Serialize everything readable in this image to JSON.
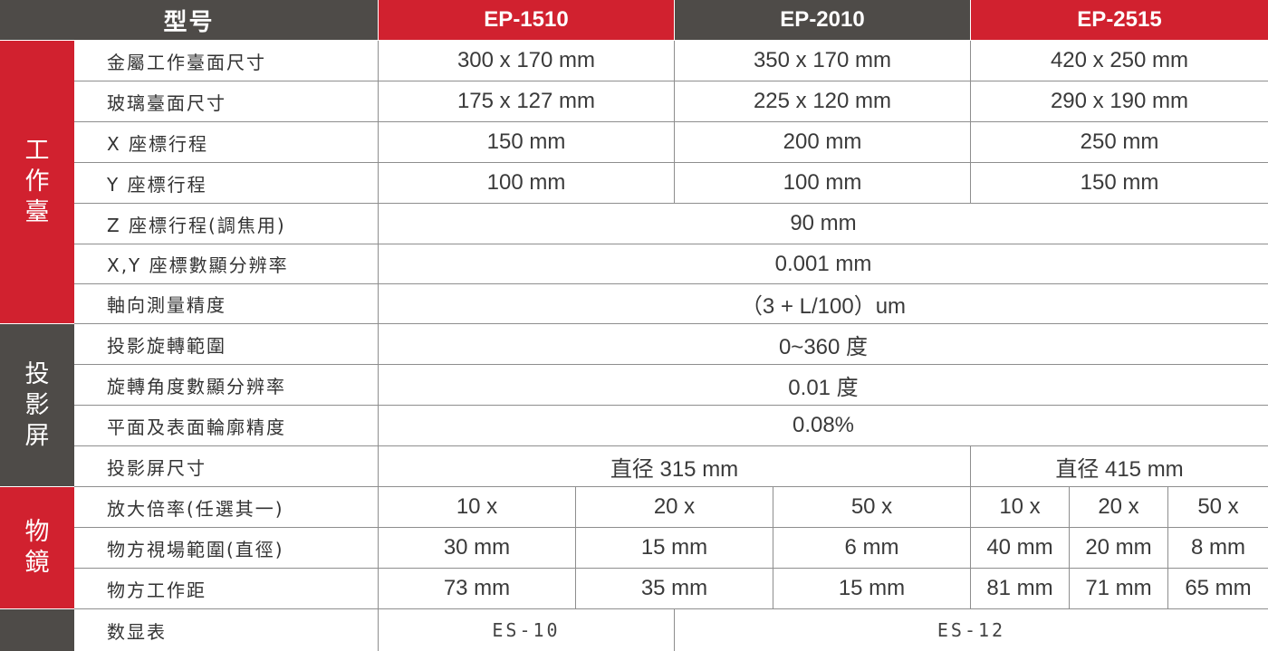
{
  "header": {
    "model_label": "型号",
    "models": [
      "EP-1510",
      "EP-2010",
      "EP-2515"
    ]
  },
  "groups": {
    "worktable": "工作臺",
    "projection": "投影屏",
    "objective": "物鏡"
  },
  "rows": {
    "metal_table_size": {
      "label": "金屬工作臺面尺寸",
      "values": [
        "300 x 170 mm",
        "350 x 170 mm",
        "420 x 250 mm"
      ]
    },
    "glass_table_size": {
      "label": "玻璃臺面尺寸",
      "values": [
        "175 x 127 mm",
        "225 x 120 mm",
        "290 x 190 mm"
      ]
    },
    "x_travel": {
      "label": "X 座標行程",
      "values": [
        "150 mm",
        "200 mm",
        "250 mm"
      ]
    },
    "y_travel": {
      "label": "Y 座標行程",
      "values": [
        "100 mm",
        "100 mm",
        "150 mm"
      ]
    },
    "z_travel": {
      "label": "Z 座標行程(調焦用)",
      "value": "90 mm"
    },
    "xy_resolution": {
      "label": "X,Y 座標數顯分辨率",
      "value": "0.001 mm"
    },
    "axial_accuracy": {
      "label": "軸向測量精度",
      "value": "（3 + L/100）um"
    },
    "rotation_range": {
      "label": "投影旋轉範圍",
      "value": "0~360 度"
    },
    "angle_resolution": {
      "label": "旋轉角度數顯分辨率",
      "value": "0.01 度"
    },
    "contour_accuracy": {
      "label": "平面及表面輪廓精度",
      "value": "0.08%"
    },
    "screen_size": {
      "label": "投影屏尺寸",
      "values": [
        "直径 315 mm",
        "直径 415 mm"
      ]
    },
    "magnification": {
      "label": "放大倍率(任選其一)",
      "values": [
        "10 x",
        "20 x",
        "50 x",
        "10 x",
        "20 x",
        "50 x"
      ]
    },
    "field_of_view": {
      "label": "物方視場範圍(直徑)",
      "values": [
        "30 mm",
        "15 mm",
        "6 mm",
        "40 mm",
        "20 mm",
        "8 mm"
      ]
    },
    "working_distance": {
      "label": "物方工作距",
      "values": [
        "73 mm",
        "35 mm",
        "15 mm",
        "81 mm",
        "71 mm",
        "65 mm"
      ]
    },
    "display": {
      "label": "数显表",
      "values": [
        "ES-10",
        "ES-12"
      ]
    }
  },
  "colors": {
    "red": "#d1212f",
    "dark": "#4e4b48",
    "border": "#8e8e8e",
    "text": "#3a3a3a"
  }
}
